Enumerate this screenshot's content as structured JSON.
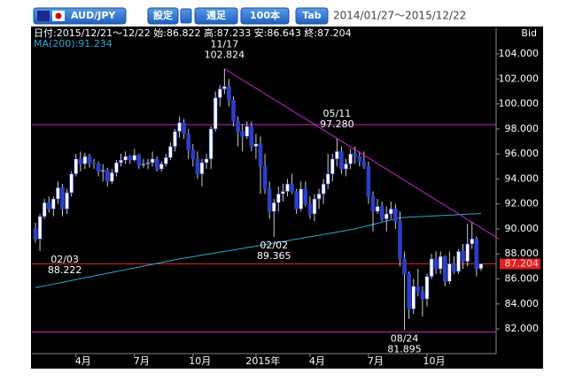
{
  "toolbar": {
    "pair": "AUD/JPY",
    "buttons": [
      "設定",
      "週足",
      "100本",
      "Tab"
    ],
    "range": "2014/01/27～2015/12/22"
  },
  "chart_data": {
    "type": "candlestick",
    "header": "日付:2015/12/21～12/22 始:86.822 高:87.233 安:86.643 終:87.204",
    "price_side": "Bid",
    "ylim": [
      81.6,
      105
    ],
    "yticks": [
      {
        "value": 82,
        "label": "82.000"
      },
      {
        "value": 84,
        "label": "84.000"
      },
      {
        "value": 86,
        "label": "86.000"
      },
      {
        "value": 88,
        "label": "88.000"
      },
      {
        "value": 90,
        "label": "90.000"
      },
      {
        "value": 92,
        "label": "92.000"
      },
      {
        "value": 94,
        "label": "94.000"
      },
      {
        "value": 96,
        "label": "96.000"
      },
      {
        "value": 98,
        "label": "98.000"
      },
      {
        "value": 100,
        "label": "100.000"
      },
      {
        "value": 102,
        "label": "102.000"
      },
      {
        "value": 104,
        "label": "104.000"
      }
    ],
    "x_labels": [
      {
        "index": 9,
        "label": "4月"
      },
      {
        "index": 22,
        "label": "7月"
      },
      {
        "index": 35,
        "label": "10月"
      },
      {
        "index": 49,
        "label": "2015年"
      },
      {
        "index": 61,
        "label": "4月"
      },
      {
        "index": 74,
        "label": "7月"
      },
      {
        "index": 87,
        "label": "10月"
      }
    ],
    "up_color": "#ffffff",
    "down_color": "#2b3fc8",
    "wick_color": "#cccccc",
    "candles": [
      [
        90.0,
        90.5,
        88.9,
        89.2
      ],
      [
        89.2,
        91.2,
        88.222,
        91.0
      ],
      [
        91.0,
        92.4,
        90.8,
        92.1
      ],
      [
        92.1,
        92.6,
        91.3,
        91.6
      ],
      [
        91.6,
        92.6,
        91.0,
        92.4
      ],
      [
        92.4,
        93.8,
        92.0,
        93.3
      ],
      [
        93.3,
        93.6,
        91.0,
        91.6
      ],
      [
        91.6,
        93.2,
        91.2,
        92.9
      ],
      [
        92.9,
        94.6,
        92.6,
        94.4
      ],
      [
        94.4,
        96.0,
        94.2,
        95.6
      ],
      [
        95.6,
        96.2,
        94.6,
        95.2
      ],
      [
        95.2,
        96.1,
        94.8,
        95.8
      ],
      [
        95.8,
        96.0,
        94.9,
        95.3
      ],
      [
        95.3,
        95.6,
        94.8,
        95.2
      ],
      [
        95.2,
        95.4,
        94.2,
        94.6
      ],
      [
        94.6,
        95.2,
        93.8,
        94.7
      ],
      [
        94.7,
        94.9,
        93.4,
        93.8
      ],
      [
        93.8,
        94.8,
        93.6,
        94.5
      ],
      [
        94.5,
        95.5,
        94.2,
        95.3
      ],
      [
        95.3,
        96.0,
        95.0,
        95.5
      ],
      [
        95.5,
        96.2,
        95.2,
        95.8
      ],
      [
        95.8,
        95.9,
        95.2,
        95.5
      ],
      [
        95.5,
        96.4,
        95.4,
        95.9
      ],
      [
        95.9,
        96.0,
        94.8,
        95.1
      ],
      [
        95.1,
        95.6,
        94.9,
        95.2
      ],
      [
        95.2,
        95.6,
        94.8,
        95.3
      ],
      [
        95.3,
        96.2,
        95.0,
        95.6
      ],
      [
        95.6,
        95.8,
        94.6,
        94.8
      ],
      [
        94.8,
        95.4,
        94.6,
        95.2
      ],
      [
        95.2,
        96.0,
        95.0,
        95.7
      ],
      [
        95.7,
        96.9,
        95.5,
        96.6
      ],
      [
        96.6,
        98.0,
        96.2,
        97.8
      ],
      [
        97.8,
        99.0,
        97.3,
        98.5
      ],
      [
        98.5,
        98.8,
        97.2,
        97.6
      ],
      [
        97.6,
        98.0,
        95.6,
        96.3
      ],
      [
        96.3,
        96.8,
        95.0,
        95.6
      ],
      [
        95.6,
        96.2,
        94.0,
        94.4
      ],
      [
        94.4,
        95.6,
        93.4,
        95.3
      ],
      [
        95.3,
        96.0,
        94.8,
        95.6
      ],
      [
        95.6,
        98.2,
        94.8,
        98.0
      ],
      [
        98.0,
        101.0,
        97.8,
        100.5
      ],
      [
        100.5,
        101.5,
        99.8,
        101.2
      ],
      [
        101.2,
        102.824,
        100.8,
        101.4
      ],
      [
        101.4,
        102.0,
        99.8,
        100.3
      ],
      [
        100.3,
        100.6,
        98.2,
        98.6
      ],
      [
        98.6,
        99.0,
        96.6,
        97.8
      ],
      [
        97.8,
        98.4,
        96.2,
        97.4
      ],
      [
        97.4,
        98.6,
        97.2,
        98.2
      ],
      [
        98.2,
        98.6,
        96.2,
        96.6
      ],
      [
        96.6,
        97.6,
        95.6,
        96.8
      ],
      [
        96.8,
        97.4,
        92.8,
        95.0
      ],
      [
        95.0,
        96.0,
        92.8,
        93.2
      ],
      [
        93.2,
        93.8,
        90.8,
        91.4
      ],
      [
        91.4,
        92.4,
        89.365,
        92.1
      ],
      [
        92.1,
        93.4,
        91.4,
        92.8
      ],
      [
        92.8,
        93.6,
        92.2,
        93.0
      ],
      [
        93.0,
        94.0,
        92.6,
        93.6
      ],
      [
        93.6,
        94.4,
        92.8,
        93.0
      ],
      [
        93.0,
        93.2,
        91.2,
        91.6
      ],
      [
        91.6,
        93.8,
        91.4,
        93.2
      ],
      [
        93.2,
        93.8,
        91.8,
        92.0
      ],
      [
        92.0,
        92.6,
        90.8,
        91.2
      ],
      [
        91.2,
        92.8,
        90.6,
        92.4
      ],
      [
        92.4,
        93.2,
        91.6,
        92.8
      ],
      [
        92.8,
        94.0,
        92.0,
        93.6
      ],
      [
        93.6,
        96.0,
        93.2,
        94.4
      ],
      [
        94.4,
        96.0,
        93.8,
        95.6
      ],
      [
        95.6,
        97.28,
        95.0,
        96.2
      ],
      [
        96.2,
        96.6,
        94.4,
        94.8
      ],
      [
        94.8,
        95.6,
        94.2,
        95.2
      ],
      [
        95.2,
        96.4,
        94.8,
        96.0
      ],
      [
        96.0,
        96.6,
        95.2,
        95.8
      ],
      [
        95.8,
        96.2,
        95.0,
        95.4
      ],
      [
        95.4,
        96.2,
        94.8,
        95.0
      ],
      [
        95.0,
        95.4,
        92.0,
        92.6
      ],
      [
        92.6,
        93.0,
        89.8,
        91.4
      ],
      [
        91.4,
        92.4,
        91.2,
        91.8
      ],
      [
        91.8,
        92.2,
        90.6,
        90.8
      ],
      [
        90.8,
        91.8,
        89.8,
        91.2
      ],
      [
        91.2,
        92.2,
        90.8,
        91.6
      ],
      [
        91.6,
        92.0,
        90.0,
        90.6
      ],
      [
        90.6,
        91.4,
        87.0,
        87.6
      ],
      [
        87.6,
        88.2,
        81.895,
        86.4
      ],
      [
        86.4,
        86.6,
        82.8,
        83.6
      ],
      [
        83.6,
        86.0,
        83.2,
        85.4
      ],
      [
        85.4,
        86.8,
        84.6,
        85.0
      ],
      [
        85.0,
        85.4,
        83.0,
        84.4
      ],
      [
        84.4,
        86.4,
        83.8,
        86.2
      ],
      [
        86.2,
        88.0,
        86.0,
        87.6
      ],
      [
        87.6,
        88.2,
        86.4,
        86.8
      ],
      [
        86.8,
        88.2,
        86.4,
        87.8
      ],
      [
        87.8,
        87.9,
        85.4,
        85.8
      ],
      [
        85.8,
        88.2,
        85.6,
        87.2
      ],
      [
        87.2,
        87.8,
        86.4,
        86.6
      ],
      [
        86.6,
        88.4,
        86.4,
        88.2
      ],
      [
        88.2,
        88.8,
        86.8,
        87.4
      ],
      [
        87.4,
        90.4,
        87.0,
        88.8
      ],
      [
        88.8,
        90.6,
        88.4,
        89.2
      ],
      [
        89.2,
        89.4,
        86.2,
        86.8
      ],
      [
        86.822,
        87.233,
        86.643,
        87.204
      ]
    ],
    "ma": {
      "name": "MA(200):91.234",
      "color": "#2aa8e0",
      "values": [
        85.3,
        85.37,
        85.44,
        85.52,
        85.59,
        85.66,
        85.73,
        85.8,
        85.88,
        85.95,
        86.02,
        86.09,
        86.16,
        86.23,
        86.31,
        86.38,
        86.45,
        86.52,
        86.59,
        86.67,
        86.74,
        86.81,
        86.88,
        86.95,
        87.03,
        87.1,
        87.17,
        87.24,
        87.31,
        87.39,
        87.46,
        87.53,
        87.6,
        87.66,
        87.72,
        87.78,
        87.84,
        87.9,
        87.96,
        88.02,
        88.08,
        88.14,
        88.2,
        88.26,
        88.32,
        88.38,
        88.44,
        88.5,
        88.56,
        88.62,
        88.68,
        88.74,
        88.8,
        88.86,
        88.93,
        88.99,
        89.05,
        89.12,
        89.18,
        89.24,
        89.31,
        89.37,
        89.43,
        89.49,
        89.56,
        89.62,
        89.68,
        89.75,
        89.81,
        89.87,
        89.94,
        90.0,
        90.09,
        90.18,
        90.27,
        90.36,
        90.45,
        90.54,
        90.63,
        90.72,
        90.81,
        90.9,
        90.92,
        90.94,
        90.96,
        90.98,
        91.0,
        91.01,
        91.03,
        91.05,
        91.07,
        91.09,
        91.1,
        91.12,
        91.14,
        91.16,
        91.18,
        91.2,
        91.21,
        91.234
      ]
    },
    "horizontal_lines": [
      {
        "value": 98.34,
        "color": "#d020d0"
      },
      {
        "value": 87.204,
        "color": "#e02020"
      },
      {
        "value": 81.75,
        "color": "#d020d0"
      }
    ],
    "trendline": {
      "color": "#d020d0",
      "from": [
        42,
        102.824
      ],
      "to": [
        103,
        89.2
      ]
    },
    "last_price": {
      "value": 87.204,
      "label": "87.204",
      "color": "#e02020"
    },
    "annotations": [
      {
        "index": 42,
        "date": "11/17",
        "value": 102.824,
        "label": "102.824",
        "side": "above"
      },
      {
        "index": 67,
        "date": "05/11",
        "value": 97.28,
        "label": "97.280",
        "side": "above"
      },
      {
        "index": 1,
        "date": "02/03",
        "value": 88.222,
        "label": "88.222",
        "side": "below"
      },
      {
        "index": 53,
        "date": "02/02",
        "value": 89.365,
        "label": "89.365",
        "side": "below"
      },
      {
        "index": 82,
        "date": "08/24",
        "value": 81.895,
        "label": "81.895",
        "side": "below"
      }
    ]
  }
}
